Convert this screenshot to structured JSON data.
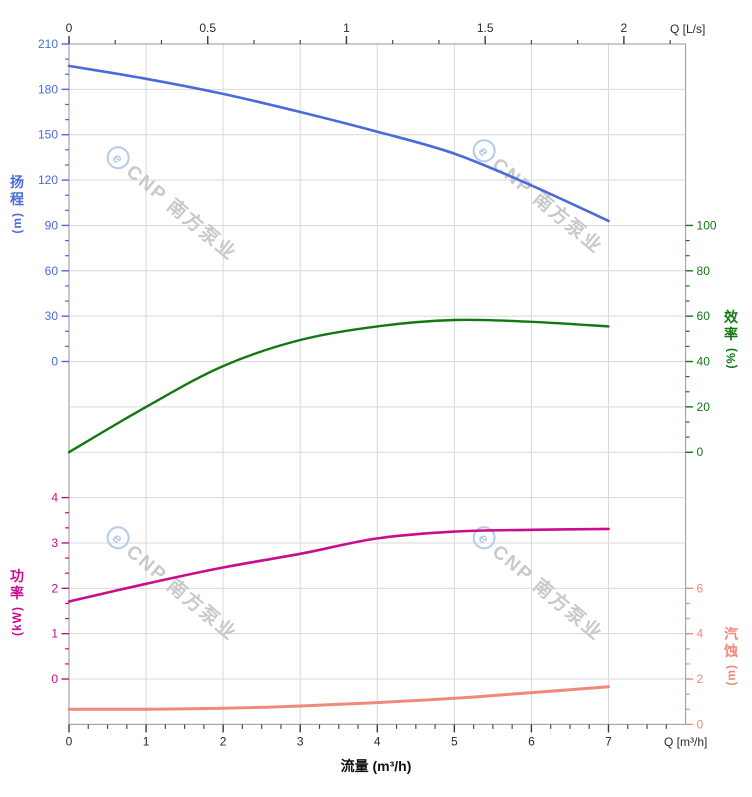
{
  "watermark": {
    "logo_letter": "e",
    "brand": "CNP 南方泵业"
  },
  "chart_data": {
    "type": "line",
    "title": "",
    "xlabel": "流量 (m³/h)",
    "grid": true,
    "x_axis_bottom": {
      "label": "Q [m³/h]",
      "ticks": [
        "0",
        "1",
        "2",
        "3",
        "4",
        "5",
        "6",
        "7"
      ],
      "tick_values": [
        0,
        1,
        2,
        3,
        4,
        5,
        6,
        7
      ],
      "range": [
        0,
        8
      ]
    },
    "x_axis_top": {
      "label": "Q [L/s]",
      "ticks": [
        "0",
        "0.5",
        "1",
        "1.5",
        "2"
      ],
      "tick_values": [
        0,
        0.5,
        1,
        1.5,
        2
      ],
      "range": [
        0,
        2.222
      ],
      "ls_per_m3h": 0.2778
    },
    "y_axes": {
      "head": {
        "title": "扬程",
        "unit": "(m)",
        "side": "left",
        "color": "#4a6bd9",
        "ticks": [
          "210",
          "180",
          "150",
          "120",
          "90",
          "60",
          "30",
          "0"
        ],
        "tick_values": [
          210,
          180,
          150,
          120,
          90,
          60,
          30,
          0
        ],
        "range": [
          0,
          210
        ]
      },
      "eff": {
        "title": "效率",
        "unit": "(%)",
        "side": "right",
        "color": "#127912",
        "ticks": [
          "100",
          "80",
          "60",
          "40",
          "20",
          "0"
        ],
        "tick_values": [
          100,
          80,
          60,
          40,
          20,
          0
        ],
        "range": [
          0,
          100
        ]
      },
      "power": {
        "title": "功率",
        "unit": "(kW)",
        "side": "left",
        "color": "#c90d8c",
        "ticks": [
          "4",
          "3",
          "2",
          "1",
          "0"
        ],
        "tick_values": [
          4,
          3,
          2,
          1,
          0
        ],
        "range": [
          0,
          4
        ]
      },
      "npsh": {
        "title": "汽蚀",
        "unit": "(m)",
        "side": "right",
        "color": "#f2887a",
        "ticks": [
          "6",
          "4",
          "2",
          "0"
        ],
        "tick_values": [
          6,
          4,
          2,
          0
        ],
        "range": [
          0,
          6
        ]
      }
    },
    "x": [
      0,
      1,
      2,
      3,
      4,
      5,
      6,
      7
    ],
    "series": [
      {
        "name": "head-curve",
        "label": "扬程",
        "axis": "head",
        "color": "#4a6bd9",
        "values": [
          195.5,
          187,
          177,
          165,
          152,
          137.5,
          116.5,
          93
        ]
      },
      {
        "name": "efficiency-curve",
        "label": "效率",
        "axis": "eff",
        "color": "#127912",
        "values": [
          0,
          20,
          38,
          49.5,
          55.5,
          58.3,
          57.5,
          55.5
        ]
      },
      {
        "name": "power-curve",
        "label": "功率",
        "axis": "power",
        "color": "#c90d8c",
        "values": [
          1.71,
          2.1,
          2.46,
          2.76,
          3.1,
          3.25,
          3.29,
          3.31
        ]
      },
      {
        "name": "npsh-curve",
        "label": "汽蚀",
        "axis": "npsh",
        "color": "#f2887a",
        "values": [
          0.67,
          0.67,
          0.71,
          0.81,
          0.96,
          1.15,
          1.4,
          1.66
        ]
      }
    ]
  }
}
